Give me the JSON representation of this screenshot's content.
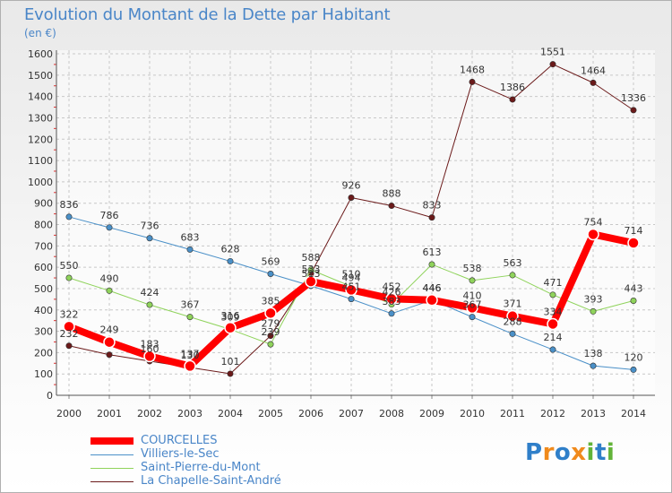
{
  "title": "Evolution du Montant de la Dette par Habitant",
  "unit": "(en €)",
  "logo": [
    "P",
    "r",
    "o",
    "x",
    "i",
    "t",
    "i"
  ],
  "chart_data": {
    "type": "line",
    "x": [
      "2000",
      "2001",
      "2002",
      "2003",
      "2004",
      "2005",
      "2006",
      "2007",
      "2008",
      "2009",
      "2010",
      "2011",
      "2012",
      "2013",
      "2014"
    ],
    "ylim": [
      0,
      1600
    ],
    "yticks": [
      0,
      100,
      200,
      300,
      400,
      500,
      600,
      700,
      800,
      900,
      1000,
      1100,
      1200,
      1300,
      1400,
      1500,
      1600
    ],
    "grid": true,
    "legend_position": "bottom-left",
    "series": [
      {
        "name": "COURCELLES",
        "color": "#ff0000",
        "width": 8,
        "values": [
          322,
          249,
          183,
          137,
          316,
          385,
          533,
          494,
          452,
          446,
          410,
          371,
          334,
          754,
          714
        ],
        "labels": [
          "322",
          "249",
          "183",
          "137",
          "316",
          "385",
          "533",
          "494",
          "452",
          "446",
          "410",
          "371",
          "334",
          "754",
          "714"
        ]
      },
      {
        "name": "Villiers-le-Sec",
        "color": "#4a90c8",
        "width": 1,
        "values": [
          836,
          786,
          736,
          683,
          628,
          569,
          513,
          451,
          383,
          446,
          367,
          288,
          214,
          138,
          120
        ],
        "labels": [
          "836",
          "786",
          "736",
          "683",
          "628",
          "569",
          "513",
          "451",
          "383",
          "446",
          "367",
          "288",
          "214",
          "138",
          "120"
        ]
      },
      {
        "name": "Saint-Pierre-du-Mont",
        "color": "#8fd35b",
        "width": 1,
        "values": [
          550,
          490,
          424,
          367,
          309,
          239,
          588,
          510,
          426,
          613,
          538,
          563,
          471,
          393,
          443
        ],
        "labels": [
          "550",
          "490",
          "424",
          "367",
          "309",
          "239",
          "588",
          "510",
          "426",
          "613",
          "538",
          "563",
          "471",
          "393",
          "443"
        ]
      },
      {
        "name": "La Chapelle-Saint-André",
        "color": "#6b1a1a",
        "width": 1,
        "values": [
          232,
          190,
          160,
          130,
          101,
          279,
          570,
          926,
          888,
          833,
          1468,
          1386,
          1551,
          1464,
          1336
        ],
        "labels": [
          "232",
          "",
          "160",
          "130",
          "101",
          "279",
          "",
          "926",
          "888",
          "833",
          "1468",
          "1386",
          "1551",
          "1464",
          "1336"
        ]
      }
    ]
  }
}
